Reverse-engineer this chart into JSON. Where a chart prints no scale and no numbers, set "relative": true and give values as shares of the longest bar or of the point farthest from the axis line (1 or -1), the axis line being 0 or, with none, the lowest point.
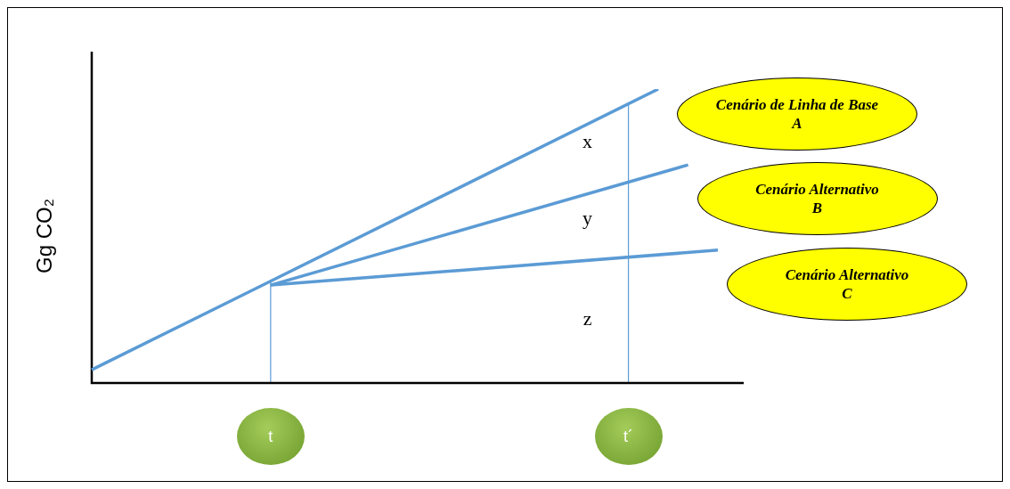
{
  "chart_data": {
    "type": "line",
    "relative": true,
    "ylabel": "Gg CO₂",
    "legend": false,
    "marker": "none",
    "line_style": "solid",
    "categories": [
      null,
      null,
      null,
      null,
      null,
      null,
      "t",
      null,
      null,
      null,
      null,
      null,
      null,
      null,
      null,
      null,
      null,
      null,
      "t´",
      null,
      null,
      null
    ],
    "series": [
      {
        "name": "Cenário de Linha de Base A",
        "color": "#5b9bd5",
        "values": [
          0.045,
          null,
          null,
          null,
          null,
          null,
          null,
          null,
          null,
          null,
          null,
          null,
          null,
          null,
          null,
          null,
          null,
          null,
          null,
          1,
          null,
          null
        ]
      },
      {
        "name": "Cenário Alternativo B",
        "color": "#5b9bd5",
        "values": [
          null,
          null,
          null,
          null,
          null,
          null,
          0.333,
          null,
          null,
          null,
          null,
          null,
          null,
          null,
          null,
          null,
          null,
          null,
          null,
          null,
          0.742,
          null
        ]
      },
      {
        "name": "Cenário Alternativo C",
        "color": "#5b9bd5",
        "values": [
          null,
          null,
          null,
          null,
          null,
          null,
          0.333,
          null,
          null,
          null,
          null,
          null,
          null,
          null,
          null,
          null,
          null,
          null,
          null,
          null,
          null,
          0.452
        ]
      }
    ],
    "ref_lines": [
      {
        "axis": "x",
        "value": "t",
        "color": "#5b9bd5"
      },
      {
        "axis": "x",
        "value": "t´",
        "color": "#5b9bd5"
      }
    ],
    "annotations": [
      "x",
      "y",
      "z"
    ]
  }
}
